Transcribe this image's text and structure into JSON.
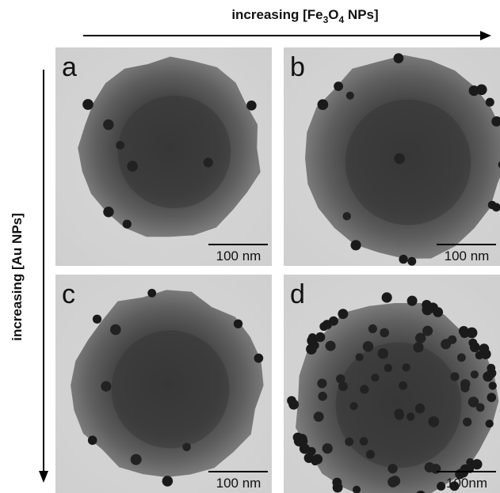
{
  "header": {
    "x_axis": {
      "text": "increasing [Fe",
      "sub1": "3",
      "mid": "O",
      "sub2": "4",
      "end": " NPs]"
    },
    "y_axis": "increasing [Au NPs]"
  },
  "panels": [
    {
      "label": "a",
      "scale_bar": "100 nm"
    },
    {
      "label": "b",
      "scale_bar": "100 nm"
    },
    {
      "label": "c",
      "scale_bar": "100 nm"
    },
    {
      "label": "d",
      "scale_bar": "100nm"
    }
  ]
}
